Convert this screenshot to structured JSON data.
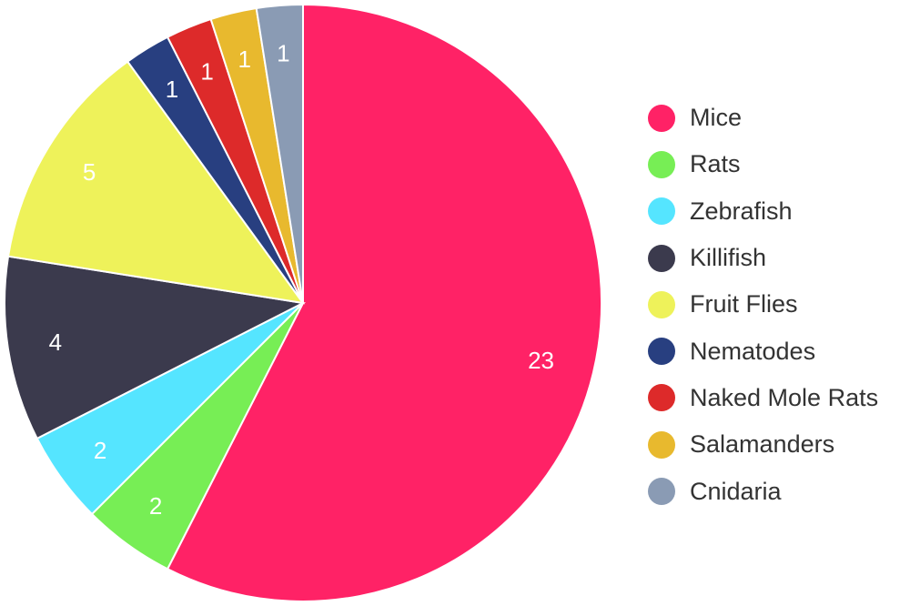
{
  "chart_data": {
    "type": "pie",
    "title": "",
    "legend_position": "right",
    "slices": [
      {
        "label": "Mice",
        "value": 23,
        "color": "#ff2266"
      },
      {
        "label": "Rats",
        "value": 2,
        "color": "#77ee55"
      },
      {
        "label": "Zebrafish",
        "value": 2,
        "color": "#55e5ff"
      },
      {
        "label": "Killifish",
        "value": 4,
        "color": "#3b3a4d"
      },
      {
        "label": "Fruit Flies",
        "value": 5,
        "color": "#eef25a"
      },
      {
        "label": "Nematodes",
        "value": 1,
        "color": "#283f80"
      },
      {
        "label": "Naked Mole Rats",
        "value": 1,
        "color": "#dd2a2a"
      },
      {
        "label": "Salamanders",
        "value": 1,
        "color": "#e8b92e"
      },
      {
        "label": "Cnidaria",
        "value": 1,
        "color": "#8a9bb4"
      }
    ]
  }
}
